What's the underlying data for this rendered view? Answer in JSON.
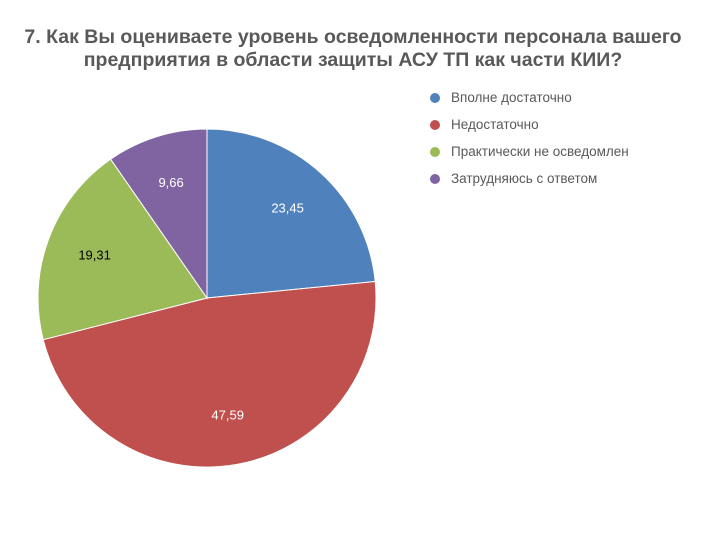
{
  "chart_data": {
    "type": "pie",
    "title_lines": [
      "7. Как Вы оцениваете уровень осведомленности персонала вашего",
      "предприятия в области защиты АСУ ТП как части КИИ?"
    ],
    "categories": [
      "Вполне достаточно",
      "Недостаточно",
      "Практически не осведомлен",
      "Затрудняюсь с ответом"
    ],
    "values": [
      23.45,
      47.59,
      19.31,
      9.66
    ],
    "value_labels": [
      "23,45",
      "47,59",
      "19,31",
      "9,66"
    ],
    "colors": [
      "#4f81bd",
      "#c0504d",
      "#9bbb59",
      "#8064a2"
    ],
    "label_colors": [
      "#ffffff",
      "#ffffff",
      "#000000",
      "#ffffff"
    ],
    "legend_position": "right"
  }
}
